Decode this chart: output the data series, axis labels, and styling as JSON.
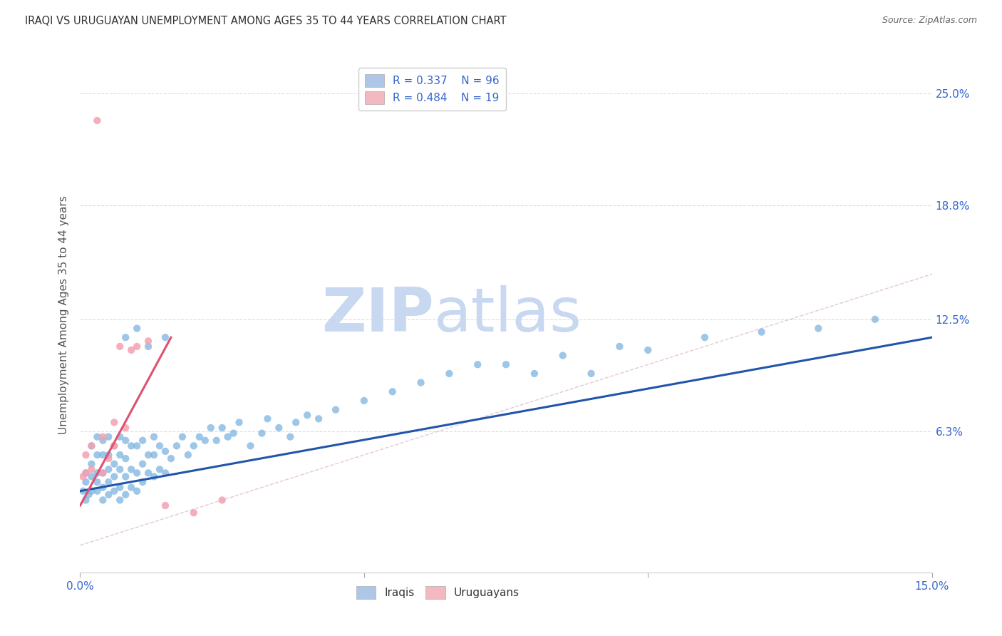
{
  "title": "IRAQI VS URUGUAYAN UNEMPLOYMENT AMONG AGES 35 TO 44 YEARS CORRELATION CHART",
  "source": "Source: ZipAtlas.com",
  "ylabel": "Unemployment Among Ages 35 to 44 years",
  "xlim": [
    0.0,
    0.15
  ],
  "ylim": [
    -0.015,
    0.27
  ],
  "ytick_positions": [
    0.063,
    0.125,
    0.188,
    0.25
  ],
  "ytick_labels": [
    "6.3%",
    "12.5%",
    "18.8%",
    "25.0%"
  ],
  "legend_labels": [
    "R = 0.337    N = 96",
    "R = 0.484    N = 19"
  ],
  "legend_colors": [
    "#aec6e8",
    "#f4b8c1"
  ],
  "iraqis_color": "#7db3e0",
  "uruguayans_color": "#f4a0b0",
  "trendline_iraqis_color": "#2255aa",
  "trendline_uruguayans_color": "#e05070",
  "diagonal_color": "#ddbbcc",
  "watermark_zip": "ZIP",
  "watermark_atlas": "atlas",
  "watermark_color_zip": "#c8d8f0",
  "watermark_color_atlas": "#c8d8f0",
  "background_color": "#ffffff",
  "iraqis_x": [
    0.0005,
    0.001,
    0.001,
    0.001,
    0.0015,
    0.002,
    0.002,
    0.002,
    0.002,
    0.003,
    0.003,
    0.003,
    0.003,
    0.003,
    0.004,
    0.004,
    0.004,
    0.004,
    0.004,
    0.005,
    0.005,
    0.005,
    0.005,
    0.005,
    0.006,
    0.006,
    0.006,
    0.006,
    0.007,
    0.007,
    0.007,
    0.007,
    0.007,
    0.008,
    0.008,
    0.008,
    0.008,
    0.009,
    0.009,
    0.009,
    0.01,
    0.01,
    0.01,
    0.011,
    0.011,
    0.011,
    0.012,
    0.012,
    0.013,
    0.013,
    0.013,
    0.014,
    0.014,
    0.015,
    0.015,
    0.016,
    0.017,
    0.018,
    0.019,
    0.02,
    0.021,
    0.022,
    0.023,
    0.024,
    0.025,
    0.026,
    0.027,
    0.028,
    0.03,
    0.032,
    0.033,
    0.035,
    0.037,
    0.038,
    0.04,
    0.042,
    0.045,
    0.05,
    0.055,
    0.06,
    0.065,
    0.07,
    0.075,
    0.08,
    0.085,
    0.09,
    0.095,
    0.1,
    0.11,
    0.12,
    0.13,
    0.14,
    0.008,
    0.01,
    0.012,
    0.015
  ],
  "iraqis_y": [
    0.03,
    0.025,
    0.035,
    0.04,
    0.028,
    0.03,
    0.038,
    0.045,
    0.055,
    0.03,
    0.035,
    0.04,
    0.05,
    0.06,
    0.025,
    0.032,
    0.04,
    0.05,
    0.058,
    0.028,
    0.035,
    0.042,
    0.05,
    0.06,
    0.03,
    0.038,
    0.045,
    0.055,
    0.025,
    0.032,
    0.042,
    0.05,
    0.06,
    0.028,
    0.038,
    0.048,
    0.058,
    0.032,
    0.042,
    0.055,
    0.03,
    0.04,
    0.055,
    0.035,
    0.045,
    0.058,
    0.04,
    0.05,
    0.038,
    0.05,
    0.06,
    0.042,
    0.055,
    0.04,
    0.052,
    0.048,
    0.055,
    0.06,
    0.05,
    0.055,
    0.06,
    0.058,
    0.065,
    0.058,
    0.065,
    0.06,
    0.062,
    0.068,
    0.055,
    0.062,
    0.07,
    0.065,
    0.06,
    0.068,
    0.072,
    0.07,
    0.075,
    0.08,
    0.085,
    0.09,
    0.095,
    0.1,
    0.1,
    0.095,
    0.105,
    0.095,
    0.11,
    0.108,
    0.115,
    0.118,
    0.12,
    0.125,
    0.115,
    0.12,
    0.11,
    0.115
  ],
  "uruguayans_x": [
    0.0005,
    0.001,
    0.001,
    0.002,
    0.002,
    0.003,
    0.004,
    0.004,
    0.005,
    0.006,
    0.006,
    0.007,
    0.008,
    0.009,
    0.01,
    0.012,
    0.015,
    0.02,
    0.025
  ],
  "uruguayans_y": [
    0.038,
    0.04,
    0.05,
    0.042,
    0.055,
    0.235,
    0.04,
    0.06,
    0.048,
    0.055,
    0.068,
    0.11,
    0.065,
    0.108,
    0.11,
    0.113,
    0.022,
    0.018,
    0.025
  ],
  "iraq_trend_x": [
    0.0,
    0.15
  ],
  "iraq_trend_y": [
    0.03,
    0.115
  ],
  "urug_trend_x": [
    0.0,
    0.016
  ],
  "urug_trend_y": [
    0.022,
    0.115
  ]
}
